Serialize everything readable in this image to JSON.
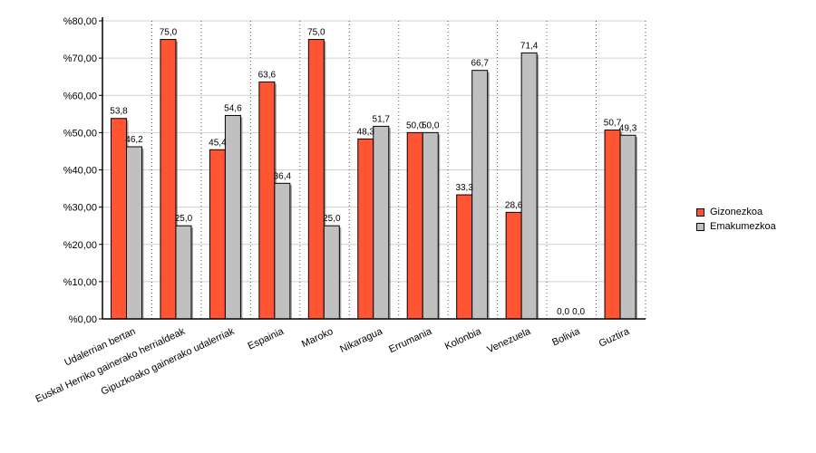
{
  "chart_data": {
    "type": "bar",
    "categories": [
      "Udalerrian bertan",
      "Euskal Herriko gainerako herrialdeak",
      "Gipuzkoako gainerako udalerriak",
      "Espainia",
      "Maroko",
      "Nikaragua",
      "Errumania",
      "Kolonbia",
      "Venezuela",
      "Bolivia",
      "Guztira"
    ],
    "series": [
      {
        "name": "Gizonezkoa",
        "color": "#ff5533",
        "values": [
          53.8,
          75.0,
          45.4,
          63.6,
          75.0,
          48.3,
          50.0,
          33.3,
          28.6,
          0.0,
          50.7
        ],
        "labels": [
          "53,8",
          "75,0",
          "45,4",
          "63,6",
          "75,0",
          "48,3",
          "50,0",
          "33,3",
          "28,6",
          "0,0",
          "50,7"
        ]
      },
      {
        "name": "Emakumezkoa",
        "color": "#c0c0c0",
        "values": [
          46.2,
          25.0,
          54.6,
          36.4,
          25.0,
          51.7,
          50.0,
          66.7,
          71.4,
          0.0,
          49.3
        ],
        "labels": [
          "46,2",
          "25,0",
          "54,6",
          "36,4",
          "25,0",
          "51,7",
          "50,0",
          "66,7",
          "71,4",
          "0,0",
          "49,3"
        ]
      }
    ],
    "ylim": [
      0,
      80
    ],
    "yticks": [
      0,
      10,
      20,
      30,
      40,
      50,
      60,
      70,
      80
    ],
    "ytick_labels": [
      "%0,00",
      "%10,00",
      "%20,00",
      "%30,00",
      "%40,00",
      "%50,00",
      "%60,00",
      "%70,00",
      "%80,00"
    ],
    "grid": "horizontal-solid, vertical-dotted",
    "legend_position": "right"
  }
}
